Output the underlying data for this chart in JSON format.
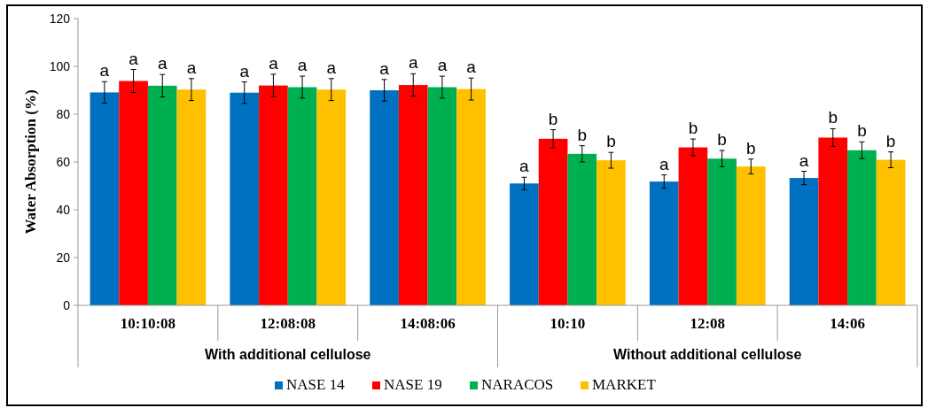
{
  "chart_data": {
    "type": "bar",
    "ylabel": "Water Absorption (%)",
    "categories": [
      "10:10:08",
      "12:08:08",
      "14:08:06",
      "10:10",
      "12:08",
      "14:06"
    ],
    "annotations": [
      "With additional cellulose",
      "Without additional cellulose"
    ],
    "series": [
      {
        "name": "NASE 14",
        "color": "#0070c0",
        "values": [
          89.1,
          89,
          90,
          51,
          51.8,
          53.3
        ],
        "errors": [
          4.5,
          4.5,
          4.5,
          2.6,
          2.8,
          2.8
        ],
        "value_labels": [
          "a",
          "a",
          "a",
          "a",
          "a",
          "a"
        ]
      },
      {
        "name": "NASE 19",
        "color": "#ff0000",
        "values": [
          93.9,
          92,
          92.2,
          69.7,
          66.1,
          70.2
        ],
        "errors": [
          4.8,
          4.7,
          4.7,
          3.8,
          3.5,
          3.7
        ],
        "value_labels": [
          "a",
          "a",
          "a",
          "b",
          "b",
          "b"
        ]
      },
      {
        "name": "NARACOS",
        "color": "#00b050",
        "values": [
          91.9,
          91.3,
          91.3,
          63.4,
          61.4,
          64.9
        ],
        "errors": [
          4.7,
          4.6,
          4.6,
          3.4,
          3.4,
          3.5
        ],
        "value_labels": [
          "a",
          "a",
          "a",
          "b",
          "b",
          "b"
        ]
      },
      {
        "name": "MARKET",
        "color": "#ffc000",
        "values": [
          90.3,
          90.3,
          90.5,
          60.7,
          58.1,
          60.9
        ],
        "errors": [
          4.6,
          4.6,
          4.6,
          3.3,
          3.1,
          3.3
        ],
        "value_labels": [
          "a",
          "a",
          "a",
          "b",
          "b",
          "b"
        ]
      }
    ],
    "ylim": [
      0,
      120
    ],
    "yticks": [
      0,
      20,
      40,
      60,
      80,
      100,
      120
    ],
    "grid": false,
    "legend": "bottom"
  }
}
